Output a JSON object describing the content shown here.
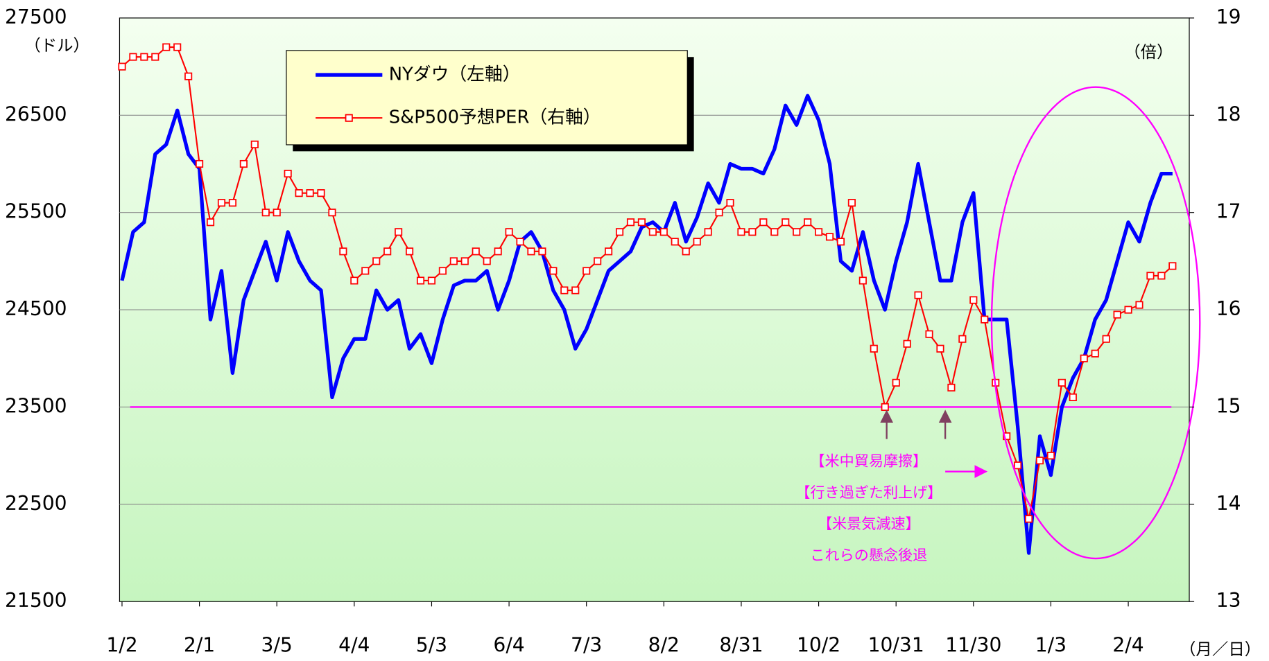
{
  "chart_data": {
    "type": "line",
    "y_label": "（ドル）",
    "y2_label": "（倍）",
    "x_label": "（月／日）",
    "categories": [
      "1/2",
      null,
      null,
      null,
      null,
      null,
      null,
      "2/1",
      null,
      null,
      null,
      null,
      null,
      null,
      "3/5",
      null,
      null,
      null,
      null,
      null,
      null,
      "4/4",
      null,
      null,
      null,
      null,
      null,
      null,
      "5/3",
      null,
      null,
      null,
      null,
      null,
      null,
      "6/4",
      null,
      null,
      null,
      null,
      null,
      null,
      "7/3",
      null,
      null,
      null,
      null,
      null,
      null,
      "8/2",
      null,
      null,
      null,
      null,
      null,
      null,
      "8/31",
      null,
      null,
      null,
      null,
      null,
      null,
      "10/2",
      null,
      null,
      null,
      null,
      null,
      null,
      "10/31",
      null,
      null,
      null,
      null,
      null,
      null,
      "11/30",
      null,
      null,
      null,
      null,
      null,
      null,
      "1/3",
      null,
      null,
      null,
      null,
      null,
      null,
      "2/4",
      null,
      null,
      null,
      null
    ],
    "series": [
      {
        "name": "NYダウ（左軸）",
        "color": "#0000ff",
        "axis": "y",
        "values": [
          24800,
          25300,
          25400,
          26100,
          26200,
          26550,
          26100,
          25950,
          24400,
          24900,
          23850,
          24600,
          24900,
          25200,
          24800,
          25300,
          25000,
          24800,
          24700,
          23600,
          24000,
          24200,
          24200,
          24700,
          24500,
          24600,
          24100,
          24250,
          23950,
          24400,
          24750,
          24800,
          24800,
          24900,
          24500,
          24800,
          25200,
          25300,
          25100,
          24700,
          24500,
          24100,
          24300,
          24600,
          24900,
          25000,
          25100,
          25350,
          25400,
          25300,
          25600,
          25200,
          25450,
          25800,
          25600,
          26000,
          25950,
          25950,
          25900,
          26150,
          26600,
          26400,
          26700,
          26450,
          26000,
          25000,
          24900,
          25300,
          24800,
          24500,
          25000,
          25400,
          26000,
          25400,
          24800,
          24800,
          25400,
          25700,
          24400,
          24400,
          24400,
          23300,
          22000,
          23200,
          22800,
          23500,
          23800,
          24000,
          24400,
          24600,
          25000,
          25400,
          25200,
          25600,
          25900,
          25900
        ]
      },
      {
        "name": "S&P500予想PER（右軸）",
        "color": "#ff0000",
        "axis": "y2",
        "values": [
          18.5,
          18.6,
          18.6,
          18.6,
          18.7,
          18.7,
          18.4,
          17.5,
          16.9,
          17.1,
          17.1,
          17.5,
          17.7,
          17.0,
          17.0,
          17.4,
          17.2,
          17.2,
          17.2,
          17.0,
          16.6,
          16.3,
          16.4,
          16.5,
          16.6,
          16.8,
          16.6,
          16.3,
          16.3,
          16.4,
          16.5,
          16.5,
          16.6,
          16.5,
          16.6,
          16.8,
          16.7,
          16.6,
          16.6,
          16.4,
          16.2,
          16.2,
          16.4,
          16.5,
          16.6,
          16.8,
          16.9,
          16.9,
          16.8,
          16.8,
          16.7,
          16.6,
          16.7,
          16.8,
          17.0,
          17.1,
          16.8,
          16.8,
          16.9,
          16.8,
          16.9,
          16.8,
          16.9,
          16.8,
          16.75,
          16.7,
          17.1,
          16.3,
          15.6,
          15.0,
          15.25,
          15.65,
          16.15,
          15.75,
          15.6,
          15.2,
          15.7,
          16.1,
          15.9,
          15.25,
          14.7,
          14.4,
          13.85,
          14.45,
          14.5,
          15.25,
          15.1,
          15.5,
          15.55,
          15.7,
          15.95,
          16.0,
          16.05,
          16.35,
          16.35,
          16.45
        ]
      }
    ],
    "ylim": [
      21500,
      27500
    ],
    "yticks": [
      21500,
      22500,
      23500,
      24500,
      25500,
      26500,
      27500
    ],
    "y2lim": [
      13,
      19
    ],
    "y2ticks": [
      13,
      14,
      15,
      16,
      17,
      18,
      19
    ],
    "hline": 23500,
    "grid": true,
    "annotations": [
      "【米中貿易摩擦】",
      "【行き過ぎた利上げ】",
      "【米景気減速】",
      "これらの懸念後退"
    ]
  }
}
